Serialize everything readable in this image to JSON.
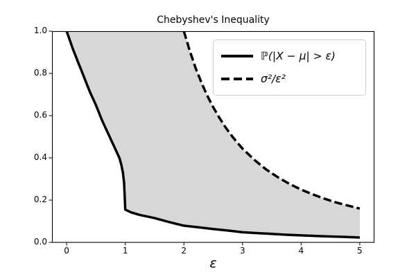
{
  "chart_data": {
    "type": "line",
    "title": "Chebyshev's Inequality",
    "xlabel": "ε",
    "ylabel": "",
    "xlim": [
      -0.25,
      5.25
    ],
    "ylim": [
      0,
      1
    ],
    "grid": false,
    "legend_position": "upper right",
    "x_ticks": [
      {
        "value": 0,
        "label": "0"
      },
      {
        "value": 1,
        "label": "1"
      },
      {
        "value": 2,
        "label": "2"
      },
      {
        "value": 3,
        "label": "3"
      },
      {
        "value": 4,
        "label": "4"
      },
      {
        "value": 5,
        "label": "5"
      }
    ],
    "y_ticks": [
      {
        "value": 0.0,
        "label": "0.0"
      },
      {
        "value": 0.2,
        "label": "0.2"
      },
      {
        "value": 0.4,
        "label": "0.4"
      },
      {
        "value": 0.6,
        "label": "0.6"
      },
      {
        "value": 0.8,
        "label": "0.8"
      },
      {
        "value": 1.0,
        "label": "1.0"
      }
    ],
    "series": [
      {
        "name": "ℙ(|X − μ| > ε)",
        "style": "solid",
        "color": "#000000",
        "line_width": 3.5,
        "x": [
          0,
          0.05,
          0.1,
          0.15,
          0.2,
          0.25,
          0.3,
          0.35,
          0.4,
          0.45,
          0.5,
          0.55,
          0.6,
          0.65,
          0.7,
          0.75,
          0.8,
          0.85,
          0.9,
          0.93,
          0.96,
          0.98,
          1.0,
          1.1,
          1.25,
          1.5,
          1.75,
          2.0,
          2.25,
          2.5,
          2.75,
          3.0,
          3.25,
          3.5,
          3.75,
          4.0,
          4.25,
          4.5,
          4.75,
          5.0
        ],
        "y": [
          1.0,
          0.96,
          0.92,
          0.885,
          0.85,
          0.815,
          0.78,
          0.745,
          0.71,
          0.68,
          0.65,
          0.615,
          0.58,
          0.55,
          0.52,
          0.49,
          0.46,
          0.43,
          0.4,
          0.37,
          0.33,
          0.28,
          0.155,
          0.142,
          0.13,
          0.115,
          0.096,
          0.079,
          0.071,
          0.063,
          0.056,
          0.048,
          0.044,
          0.04,
          0.036,
          0.033,
          0.03,
          0.028,
          0.026,
          0.023
        ]
      },
      {
        "name": "σ²/ε²",
        "style": "dashed",
        "color": "#000000",
        "line_width": 3.5,
        "x": [
          2.0,
          2.1,
          2.2,
          2.3,
          2.4,
          2.5,
          2.6,
          2.7,
          2.8,
          2.9,
          3.0,
          3.2,
          3.4,
          3.6,
          3.8,
          4.0,
          4.2,
          4.4,
          4.6,
          4.8,
          5.0
        ],
        "y": [
          1.0,
          0.907,
          0.826,
          0.756,
          0.694,
          0.64,
          0.592,
          0.549,
          0.51,
          0.476,
          0.444,
          0.391,
          0.346,
          0.309,
          0.277,
          0.25,
          0.227,
          0.207,
          0.189,
          0.174,
          0.16
        ]
      }
    ],
    "fill_between": {
      "color": "#d7d7d7",
      "between": [
        "ℙ(|X − μ| > ε)",
        "σ²/ε²"
      ],
      "clipped_at_y": 1.0
    }
  }
}
